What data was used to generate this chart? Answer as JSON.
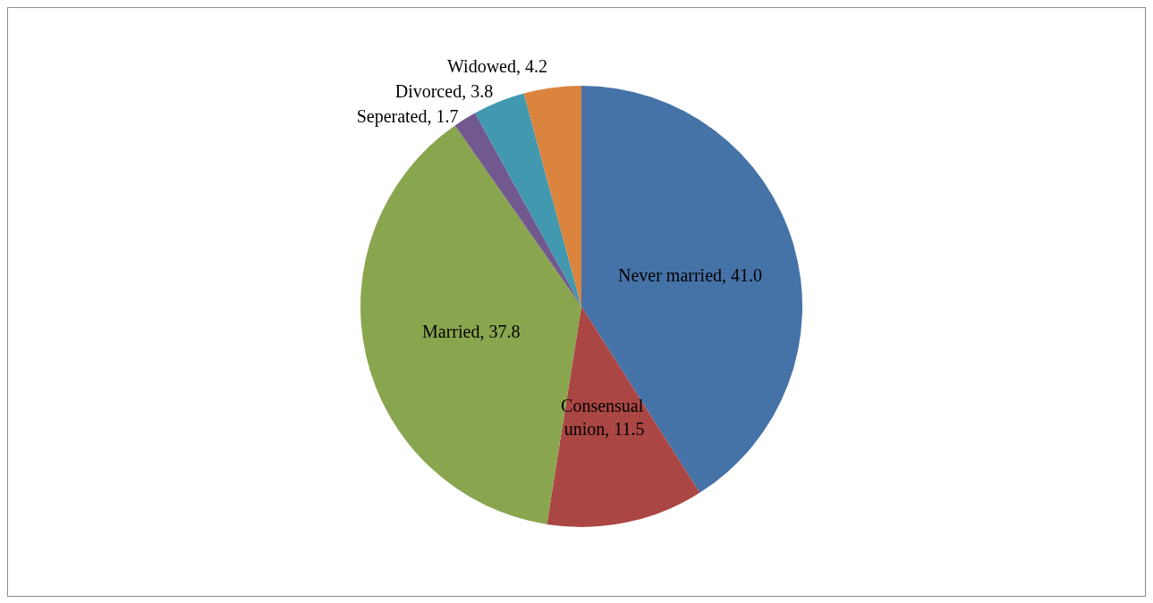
{
  "chart_data": {
    "type": "pie",
    "categories": [
      "Never married",
      "Consensual union",
      "Married",
      "Seperated",
      "Divorced",
      "Widowed"
    ],
    "values": [
      41.0,
      11.5,
      37.8,
      1.7,
      3.8,
      4.2
    ],
    "value_labels": [
      "41.0",
      "11.5",
      "37.8",
      "1.7",
      "3.8",
      "4.2"
    ],
    "colors": [
      "#4572a7",
      "#aa4643",
      "#89a54e",
      "#71588f",
      "#4198af",
      "#db843d"
    ],
    "legend": false
  }
}
